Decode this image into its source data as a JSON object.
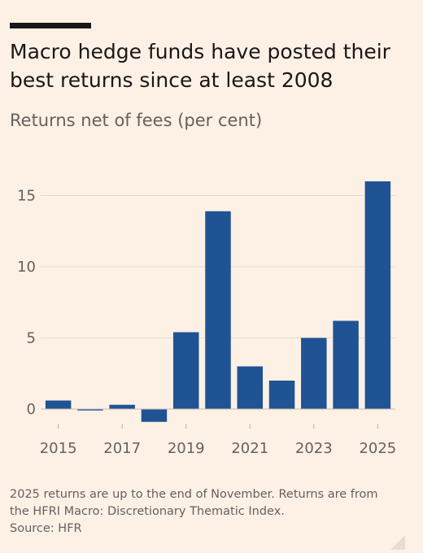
{
  "title_line1": "Macro hedge funds have posted their",
  "title_line2": "best returns since at least 2008",
  "subtitle": "Returns net of fees (per cent)",
  "chart_data": {
    "type": "bar",
    "title": "Macro hedge funds have posted their best returns since at least 2008",
    "subtitle": "Returns net of fees (per cent)",
    "categories": [
      "2015",
      "2016",
      "2017",
      "2018",
      "2019",
      "2020",
      "2021",
      "2022",
      "2023",
      "2024",
      "2025"
    ],
    "values": [
      0.6,
      -0.1,
      0.3,
      -0.9,
      5.4,
      13.9,
      3.0,
      2.0,
      5.0,
      6.2,
      16.0
    ],
    "x_tick_labels": [
      "2015",
      "2017",
      "2019",
      "2021",
      "2023",
      "2025"
    ],
    "y_ticks": [
      0,
      5,
      10,
      15
    ],
    "ylim": [
      -1,
      16.5
    ],
    "bar_color": "#1f5393",
    "grid": true,
    "xlabel": "",
    "ylabel": ""
  },
  "note_line1": "2025 returns are up to the end of November. Returns are from",
  "note_line2": "the HFRI Macro: Discretionary Thematic Index.",
  "source": "Source: HFR",
  "colors": {
    "background": "#fdf1e6",
    "bar": "#1f5393",
    "grid": "#e6d9ce",
    "text": "#1a1716",
    "muted": "#66605c"
  }
}
